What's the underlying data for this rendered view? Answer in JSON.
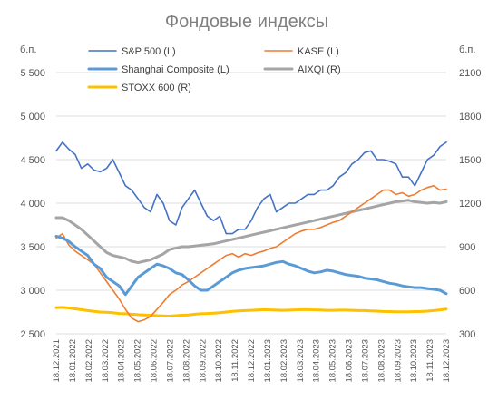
{
  "chart_data": {
    "type": "line",
    "title": "Фондовые индексы",
    "left_axis": {
      "unit": "б.п.",
      "ylim": [
        2500,
        5500
      ],
      "ticks": [
        2500,
        3000,
        3500,
        4000,
        4500,
        5000,
        5500
      ],
      "tick_labels": [
        "2 500",
        "3 000",
        "3 500",
        "4 000",
        "4 500",
        "5 000",
        "5 500"
      ]
    },
    "right_axis": {
      "unit": "б.п.",
      "ylim": [
        300,
        2100
      ],
      "ticks": [
        300,
        600,
        900,
        1200,
        1500,
        1800,
        2100
      ],
      "tick_labels": [
        "300",
        "600",
        "900",
        "1200",
        "1500",
        "1800",
        "2100"
      ]
    },
    "x_tick_labels": [
      "18.12.2021",
      "18.01.2022",
      "18.02.2022",
      "18.03.2022",
      "18.04.2022",
      "18.05.2022",
      "18.06.2022",
      "18.07.2022",
      "18.08.2022",
      "18.09.2022",
      "18.10.2022",
      "18.11.2022",
      "18.12.2022",
      "18.01.2023",
      "18.02.2023",
      "18.03.2023",
      "18.04.2023",
      "18.05.2023",
      "18.06.2023",
      "18.07.2023",
      "18.08.2023",
      "18.09.2023",
      "18.10.2023",
      "18.11.2023",
      "18.12.2023"
    ],
    "grid": true,
    "legend_placement": "top",
    "series": [
      {
        "name": "S&P 500 (L)",
        "axis": "left",
        "color": "#4472C4",
        "width": 1.6,
        "values": [
          4600,
          4700,
          4620,
          4560,
          4400,
          4450,
          4380,
          4360,
          4400,
          4500,
          4350,
          4200,
          4150,
          4050,
          3950,
          3900,
          4100,
          4000,
          3800,
          3750,
          3950,
          4050,
          4150,
          4000,
          3850,
          3800,
          3850,
          3650,
          3650,
          3700,
          3700,
          3800,
          3950,
          4050,
          4100,
          3900,
          3950,
          4000,
          4000,
          4050,
          4100,
          4100,
          4150,
          4150,
          4200,
          4300,
          4350,
          4450,
          4500,
          4580,
          4600,
          4500,
          4500,
          4480,
          4450,
          4300,
          4300,
          4200,
          4350,
          4500,
          4550,
          4650,
          4700
        ]
      },
      {
        "name": "KASE (L)",
        "axis": "left",
        "color": "#ED7D31",
        "width": 1.6,
        "values": [
          3600,
          3650,
          3520,
          3450,
          3400,
          3350,
          3300,
          3200,
          3100,
          3000,
          2900,
          2780,
          2680,
          2640,
          2660,
          2700,
          2780,
          2860,
          2950,
          3000,
          3060,
          3100,
          3150,
          3200,
          3250,
          3300,
          3350,
          3400,
          3420,
          3380,
          3420,
          3400,
          3430,
          3450,
          3480,
          3500,
          3550,
          3600,
          3650,
          3680,
          3700,
          3700,
          3720,
          3750,
          3780,
          3800,
          3850,
          3900,
          3950,
          4000,
          4050,
          4100,
          4150,
          4150,
          4100,
          4120,
          4080,
          4100,
          4150,
          4180,
          4200,
          4150,
          4160
        ]
      },
      {
        "name": "Shanghai Composite (L)",
        "axis": "left",
        "color": "#5B9BD5",
        "width": 3,
        "values": [
          3620,
          3600,
          3560,
          3500,
          3450,
          3400,
          3300,
          3250,
          3150,
          3100,
          3050,
          2950,
          3050,
          3150,
          3200,
          3250,
          3300,
          3280,
          3250,
          3200,
          3180,
          3120,
          3050,
          3000,
          3000,
          3050,
          3100,
          3150,
          3200,
          3230,
          3250,
          3260,
          3270,
          3280,
          3300,
          3320,
          3330,
          3300,
          3280,
          3250,
          3220,
          3200,
          3210,
          3230,
          3220,
          3200,
          3180,
          3170,
          3160,
          3140,
          3130,
          3120,
          3100,
          3080,
          3070,
          3050,
          3040,
          3030,
          3030,
          3020,
          3010,
          3000,
          2960
        ]
      },
      {
        "name": "AIXQI (R)",
        "axis": "right",
        "color": "#A5A5A5",
        "width": 3,
        "values": [
          1100,
          1100,
          1080,
          1050,
          1020,
          980,
          940,
          900,
          860,
          840,
          830,
          820,
          800,
          790,
          800,
          810,
          830,
          850,
          880,
          890,
          900,
          900,
          905,
          910,
          915,
          920,
          930,
          940,
          950,
          960,
          970,
          980,
          990,
          1000,
          1010,
          1020,
          1030,
          1040,
          1050,
          1060,
          1070,
          1080,
          1090,
          1100,
          1110,
          1120,
          1130,
          1140,
          1150,
          1160,
          1170,
          1180,
          1190,
          1200,
          1210,
          1215,
          1220,
          1210,
          1205,
          1200,
          1205,
          1200,
          1210
        ]
      },
      {
        "name": "STOXX 600 (R)",
        "axis": "right",
        "color": "#FFC000",
        "width": 3,
        "values": [
          480,
          482,
          478,
          472,
          466,
          460,
          455,
          450,
          448,
          445,
          440,
          438,
          435,
          432,
          430,
          428,
          425,
          423,
          422,
          425,
          428,
          430,
          435,
          438,
          440,
          442,
          445,
          450,
          455,
          458,
          460,
          462,
          464,
          466,
          465,
          463,
          462,
          463,
          465,
          466,
          466,
          465,
          464,
          462,
          462,
          463,
          463,
          462,
          460,
          460,
          458,
          456,
          454,
          453,
          452,
          452,
          452,
          453,
          454,
          456,
          460,
          465,
          470
        ]
      }
    ]
  }
}
